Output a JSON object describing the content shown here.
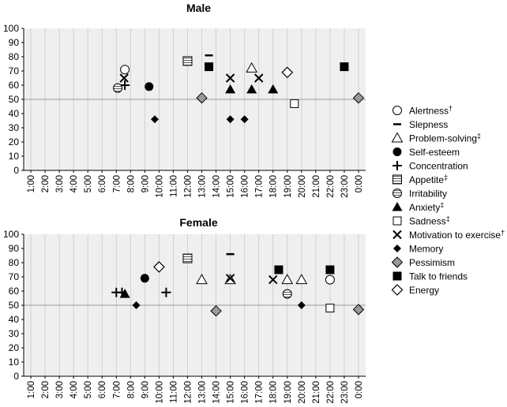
{
  "chart_data": [
    {
      "type": "scatter",
      "title": "Male",
      "ylim": [
        0,
        100
      ],
      "yticks": [
        0,
        10,
        20,
        30,
        40,
        50,
        60,
        70,
        80,
        90,
        100
      ],
      "xticks": [
        "1:00",
        "2:00",
        "3:00",
        "4:00",
        "5:00",
        "6:00",
        "7:00",
        "8:00",
        "9:00",
        "10:00",
        "11:00",
        "12:00",
        "13:00",
        "14:00",
        "15:00",
        "16:00",
        "17:00",
        "18:00",
        "19:00",
        "20:00",
        "21:00",
        "22:00",
        "23:00",
        "0:00"
      ],
      "reference_line": 50,
      "points": [
        {
          "series": "Alertness",
          "x": 7.6,
          "y": 71
        },
        {
          "series": "Motivation to exercise",
          "x": 7.55,
          "y": 65
        },
        {
          "series": "Concentration",
          "x": 7.6,
          "y": 60
        },
        {
          "series": "Irritability",
          "x": 7.1,
          "y": 58
        },
        {
          "series": "Self-esteem",
          "x": 9.3,
          "y": 59
        },
        {
          "series": "Memory",
          "x": 9.7,
          "y": 36
        },
        {
          "series": "Appetite",
          "x": 12.0,
          "y": 77
        },
        {
          "series": "Pessimism",
          "x": 13.0,
          "y": 51
        },
        {
          "series": "Slepness",
          "x": 13.5,
          "y": 81
        },
        {
          "series": "Talk to friends",
          "x": 13.5,
          "y": 73
        },
        {
          "series": "Motivation to exercise",
          "x": 15.0,
          "y": 65
        },
        {
          "series": "Anxiety",
          "x": 15.0,
          "y": 57
        },
        {
          "series": "Memory",
          "x": 15.0,
          "y": 36
        },
        {
          "series": "Memory",
          "x": 16.0,
          "y": 36
        },
        {
          "series": "Problem-solving",
          "x": 16.5,
          "y": 72
        },
        {
          "series": "Anxiety",
          "x": 16.5,
          "y": 57
        },
        {
          "series": "Motivation to exercise",
          "x": 17.0,
          "y": 65
        },
        {
          "series": "Anxiety",
          "x": 18.0,
          "y": 57
        },
        {
          "series": "Energy",
          "x": 19.0,
          "y": 69
        },
        {
          "series": "Sadness",
          "x": 19.5,
          "y": 47
        },
        {
          "series": "Talk to friends",
          "x": 23.0,
          "y": 73
        },
        {
          "series": "Pessimism",
          "x": 24.0,
          "y": 51
        }
      ]
    },
    {
      "type": "scatter",
      "title": "Female",
      "ylim": [
        0,
        100
      ],
      "yticks": [
        0,
        10,
        20,
        30,
        40,
        50,
        60,
        70,
        80,
        90,
        100
      ],
      "xticks": [
        "1:00",
        "2:00",
        "3:00",
        "4:00",
        "5:00",
        "6:00",
        "7:00",
        "8:00",
        "9:00",
        "10:00",
        "11:00",
        "12:00",
        "13:00",
        "14:00",
        "15:00",
        "16:00",
        "17:00",
        "18:00",
        "19:00",
        "20:00",
        "21:00",
        "22:00",
        "23:00",
        "0:00"
      ],
      "reference_line": 50,
      "points": [
        {
          "series": "Concentration",
          "x": 7.0,
          "y": 59
        },
        {
          "series": "Concentration",
          "x": 7.4,
          "y": 59
        },
        {
          "series": "Anxiety",
          "x": 7.6,
          "y": 58
        },
        {
          "series": "Memory",
          "x": 8.4,
          "y": 50
        },
        {
          "series": "Self-esteem",
          "x": 9.0,
          "y": 69
        },
        {
          "series": "Energy",
          "x": 10.0,
          "y": 77
        },
        {
          "series": "Concentration",
          "x": 10.5,
          "y": 59
        },
        {
          "series": "Appetite",
          "x": 12.0,
          "y": 83
        },
        {
          "series": "Problem-solving",
          "x": 13.0,
          "y": 68
        },
        {
          "series": "Pessimism",
          "x": 14.0,
          "y": 46
        },
        {
          "series": "Slepness",
          "x": 15.0,
          "y": 86
        },
        {
          "series": "Problem-solving",
          "x": 15.0,
          "y": 68
        },
        {
          "series": "Motivation to exercise",
          "x": 15.0,
          "y": 69
        },
        {
          "series": "Motivation to exercise",
          "x": 18.0,
          "y": 68
        },
        {
          "series": "Talk to friends",
          "x": 18.4,
          "y": 75
        },
        {
          "series": "Irritability",
          "x": 19.0,
          "y": 58
        },
        {
          "series": "Problem-solving",
          "x": 19.0,
          "y": 68
        },
        {
          "series": "Problem-solving",
          "x": 20.0,
          "y": 68
        },
        {
          "series": "Memory",
          "x": 20.0,
          "y": 50
        },
        {
          "series": "Alertness",
          "x": 22.0,
          "y": 68
        },
        {
          "series": "Talk to friends",
          "x": 22.0,
          "y": 75
        },
        {
          "series": "Sadness",
          "x": 22.0,
          "y": 48
        },
        {
          "series": "Pessimism",
          "x": 24.0,
          "y": 47
        }
      ]
    }
  ],
  "legend": [
    {
      "label": "Alertness",
      "note": "†",
      "marker": "open-circle"
    },
    {
      "label": "Slepness",
      "note": "",
      "marker": "dash"
    },
    {
      "label": "Problem-solving",
      "note": "‡",
      "marker": "open-triangle"
    },
    {
      "label": "Self-esteem",
      "note": "",
      "marker": "filled-circle"
    },
    {
      "label": "Concentration",
      "note": "",
      "marker": "plus"
    },
    {
      "label": "Appetite",
      "note": "‡",
      "marker": "hatched-square"
    },
    {
      "label": "Irritability",
      "note": "",
      "marker": "hatched-circle"
    },
    {
      "label": "Anxiety",
      "note": "‡",
      "marker": "filled-triangle"
    },
    {
      "label": "Sadness",
      "note": "‡",
      "marker": "open-square"
    },
    {
      "label": "Motivation to exercise",
      "note": "†",
      "marker": "cross"
    },
    {
      "label": "Memory",
      "note": "",
      "marker": "filled-diamond"
    },
    {
      "label": "Pessimism",
      "note": "",
      "marker": "hatched-diamond"
    },
    {
      "label": "Talk to friends",
      "note": "",
      "marker": "filled-square"
    },
    {
      "label": "Energy",
      "note": "",
      "marker": "open-diamond"
    }
  ]
}
